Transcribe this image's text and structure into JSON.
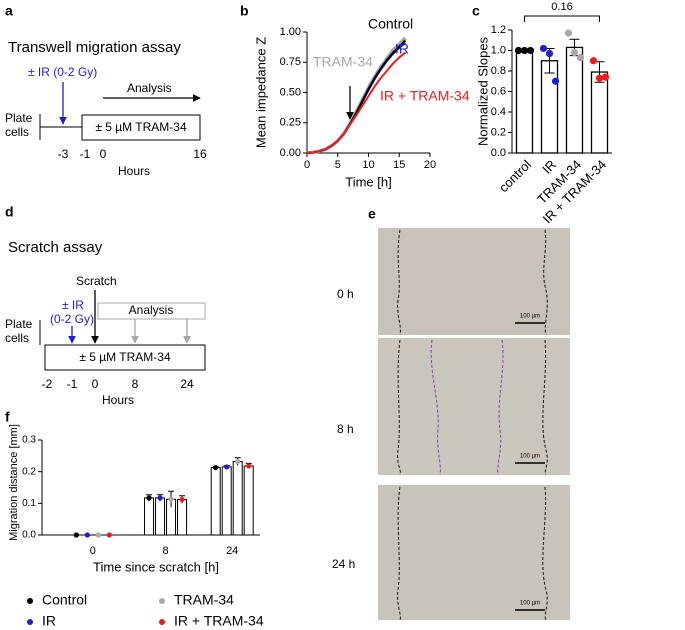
{
  "panels": {
    "a": {
      "label": "a",
      "title": "Transwell migration assay",
      "ir_label": "± IR (0-2 Gy)",
      "analysis": "Analysis",
      "plate_cells": [
        "Plate",
        "cells"
      ],
      "treatment": "± 5 µM TRAM-34",
      "hour_ticks": [
        "-3",
        "-1",
        "0",
        "16"
      ],
      "hours_label": "Hours"
    },
    "b": {
      "label": "b"
    },
    "c": {
      "label": "c"
    },
    "d": {
      "label": "d",
      "title": "Scratch assay",
      "scratch": "Scratch",
      "ir_label": [
        "± IR",
        "(0-2 Gy)"
      ],
      "analysis": "Analysis",
      "plate_cells": [
        "Plate",
        "cells"
      ],
      "treatment": "± 5 µM TRAM-34",
      "hour_ticks": [
        "-2",
        "-1",
        "0",
        "8",
        "24"
      ],
      "hours_label": "Hours"
    },
    "e": {
      "label": "e",
      "times": [
        "0 h",
        "8 h",
        "24 h"
      ],
      "scale_bar": "100 µm"
    },
    "f": {
      "label": "f"
    }
  },
  "chart_data": [
    {
      "type": "line",
      "xlabel": "Time [h]",
      "ylabel": "Mean impedance Z",
      "x": [
        0,
        1,
        2,
        3,
        4,
        5,
        6,
        7,
        8,
        9,
        10,
        11,
        12,
        13,
        14,
        15,
        16
      ],
      "series": [
        {
          "name": "Control",
          "color": "#000000",
          "values": [
            0,
            0.005,
            0.015,
            0.03,
            0.06,
            0.1,
            0.16,
            0.24,
            0.33,
            0.43,
            0.53,
            0.62,
            0.7,
            0.77,
            0.83,
            0.88,
            0.93
          ]
        },
        {
          "name": "IR",
          "color": "#1f1fd1",
          "values": [
            0,
            0.005,
            0.015,
            0.03,
            0.06,
            0.1,
            0.16,
            0.24,
            0.33,
            0.42,
            0.52,
            0.61,
            0.69,
            0.76,
            0.82,
            0.87,
            0.91
          ]
        },
        {
          "name": "TRAM-34",
          "color": "#a8a8a8",
          "values": [
            0,
            0.005,
            0.015,
            0.03,
            0.06,
            0.1,
            0.16,
            0.245,
            0.34,
            0.44,
            0.54,
            0.63,
            0.71,
            0.78,
            0.85,
            0.9,
            0.95
          ]
        },
        {
          "name": "IR + TRAM-34",
          "color": "#ee1c1c",
          "values": [
            0,
            0.005,
            0.015,
            0.03,
            0.06,
            0.1,
            0.16,
            0.235,
            0.31,
            0.39,
            0.47,
            0.55,
            0.62,
            0.68,
            0.74,
            0.79,
            0.83
          ]
        }
      ],
      "xlim": [
        0,
        20
      ],
      "xticks": [
        0,
        5,
        10,
        15,
        20
      ],
      "ylim": [
        0,
        1
      ],
      "yticks": [
        {
          "value": 0,
          "label": "0.00"
        },
        {
          "value": 0.25,
          "label": "0.25"
        },
        {
          "value": 0.5,
          "label": "0.50"
        },
        {
          "value": 0.75,
          "label": "0.75"
        },
        {
          "value": 1,
          "label": "1.00"
        }
      ]
    },
    {
      "type": "bar",
      "ylabel": "Normalized Slopes",
      "categories": [
        "control",
        "IR",
        "TRAM-34",
        "IR + TRAM-34"
      ],
      "values": [
        1.0,
        0.9,
        1.03,
        0.79
      ],
      "errors": [
        0,
        0.12,
        0.08,
        0.1
      ],
      "colors": [
        "#000000",
        "#1f1fd1",
        "#a8a8a8",
        "#ee1c1c"
      ],
      "points": [
        [
          1,
          1,
          1
        ],
        [
          1.02,
          0.97,
          0.7
        ],
        [
          1.17,
          0.98,
          0.93
        ],
        [
          0.9,
          0.73,
          0.74
        ]
      ],
      "annotation": "0.16",
      "ylim": [
        0,
        1.2
      ],
      "yticks": [
        {
          "value": 0,
          "label": "0.0"
        },
        0.2,
        0.4,
        0.6,
        0.8,
        {
          "value": 1,
          "label": "1.0"
        },
        1.2
      ]
    },
    {
      "type": "grouped_bar",
      "xlabel": "Time since scratch [h]",
      "ylabel": "Migration distance [mm]",
      "categories": [
        "0",
        "8",
        "24"
      ],
      "series": [
        {
          "name": "Control",
          "color": "#000000",
          "values": [
            0,
            0.117,
            0.213
          ],
          "errors": [
            0,
            0.01,
            0.002
          ]
        },
        {
          "name": "IR",
          "color": "#1f1fd1",
          "values": [
            0,
            0.117,
            0.215
          ],
          "errors": [
            0,
            0.01,
            0.004
          ]
        },
        {
          "name": "TRAM-34",
          "color": "#a8a8a8",
          "values": [
            0,
            0.113,
            0.232
          ],
          "errors": [
            0,
            0.025,
            0.012
          ]
        },
        {
          "name": "IR + TRAM-34",
          "color": "#ee1c1c",
          "values": [
            0,
            0.112,
            0.218
          ],
          "errors": [
            0,
            0.012,
            0.008
          ]
        }
      ],
      "ylim": [
        0,
        0.3
      ],
      "yticks": [
        {
          "value": 0,
          "label": "0.0"
        },
        0.1,
        0.2,
        0.3
      ]
    }
  ]
}
